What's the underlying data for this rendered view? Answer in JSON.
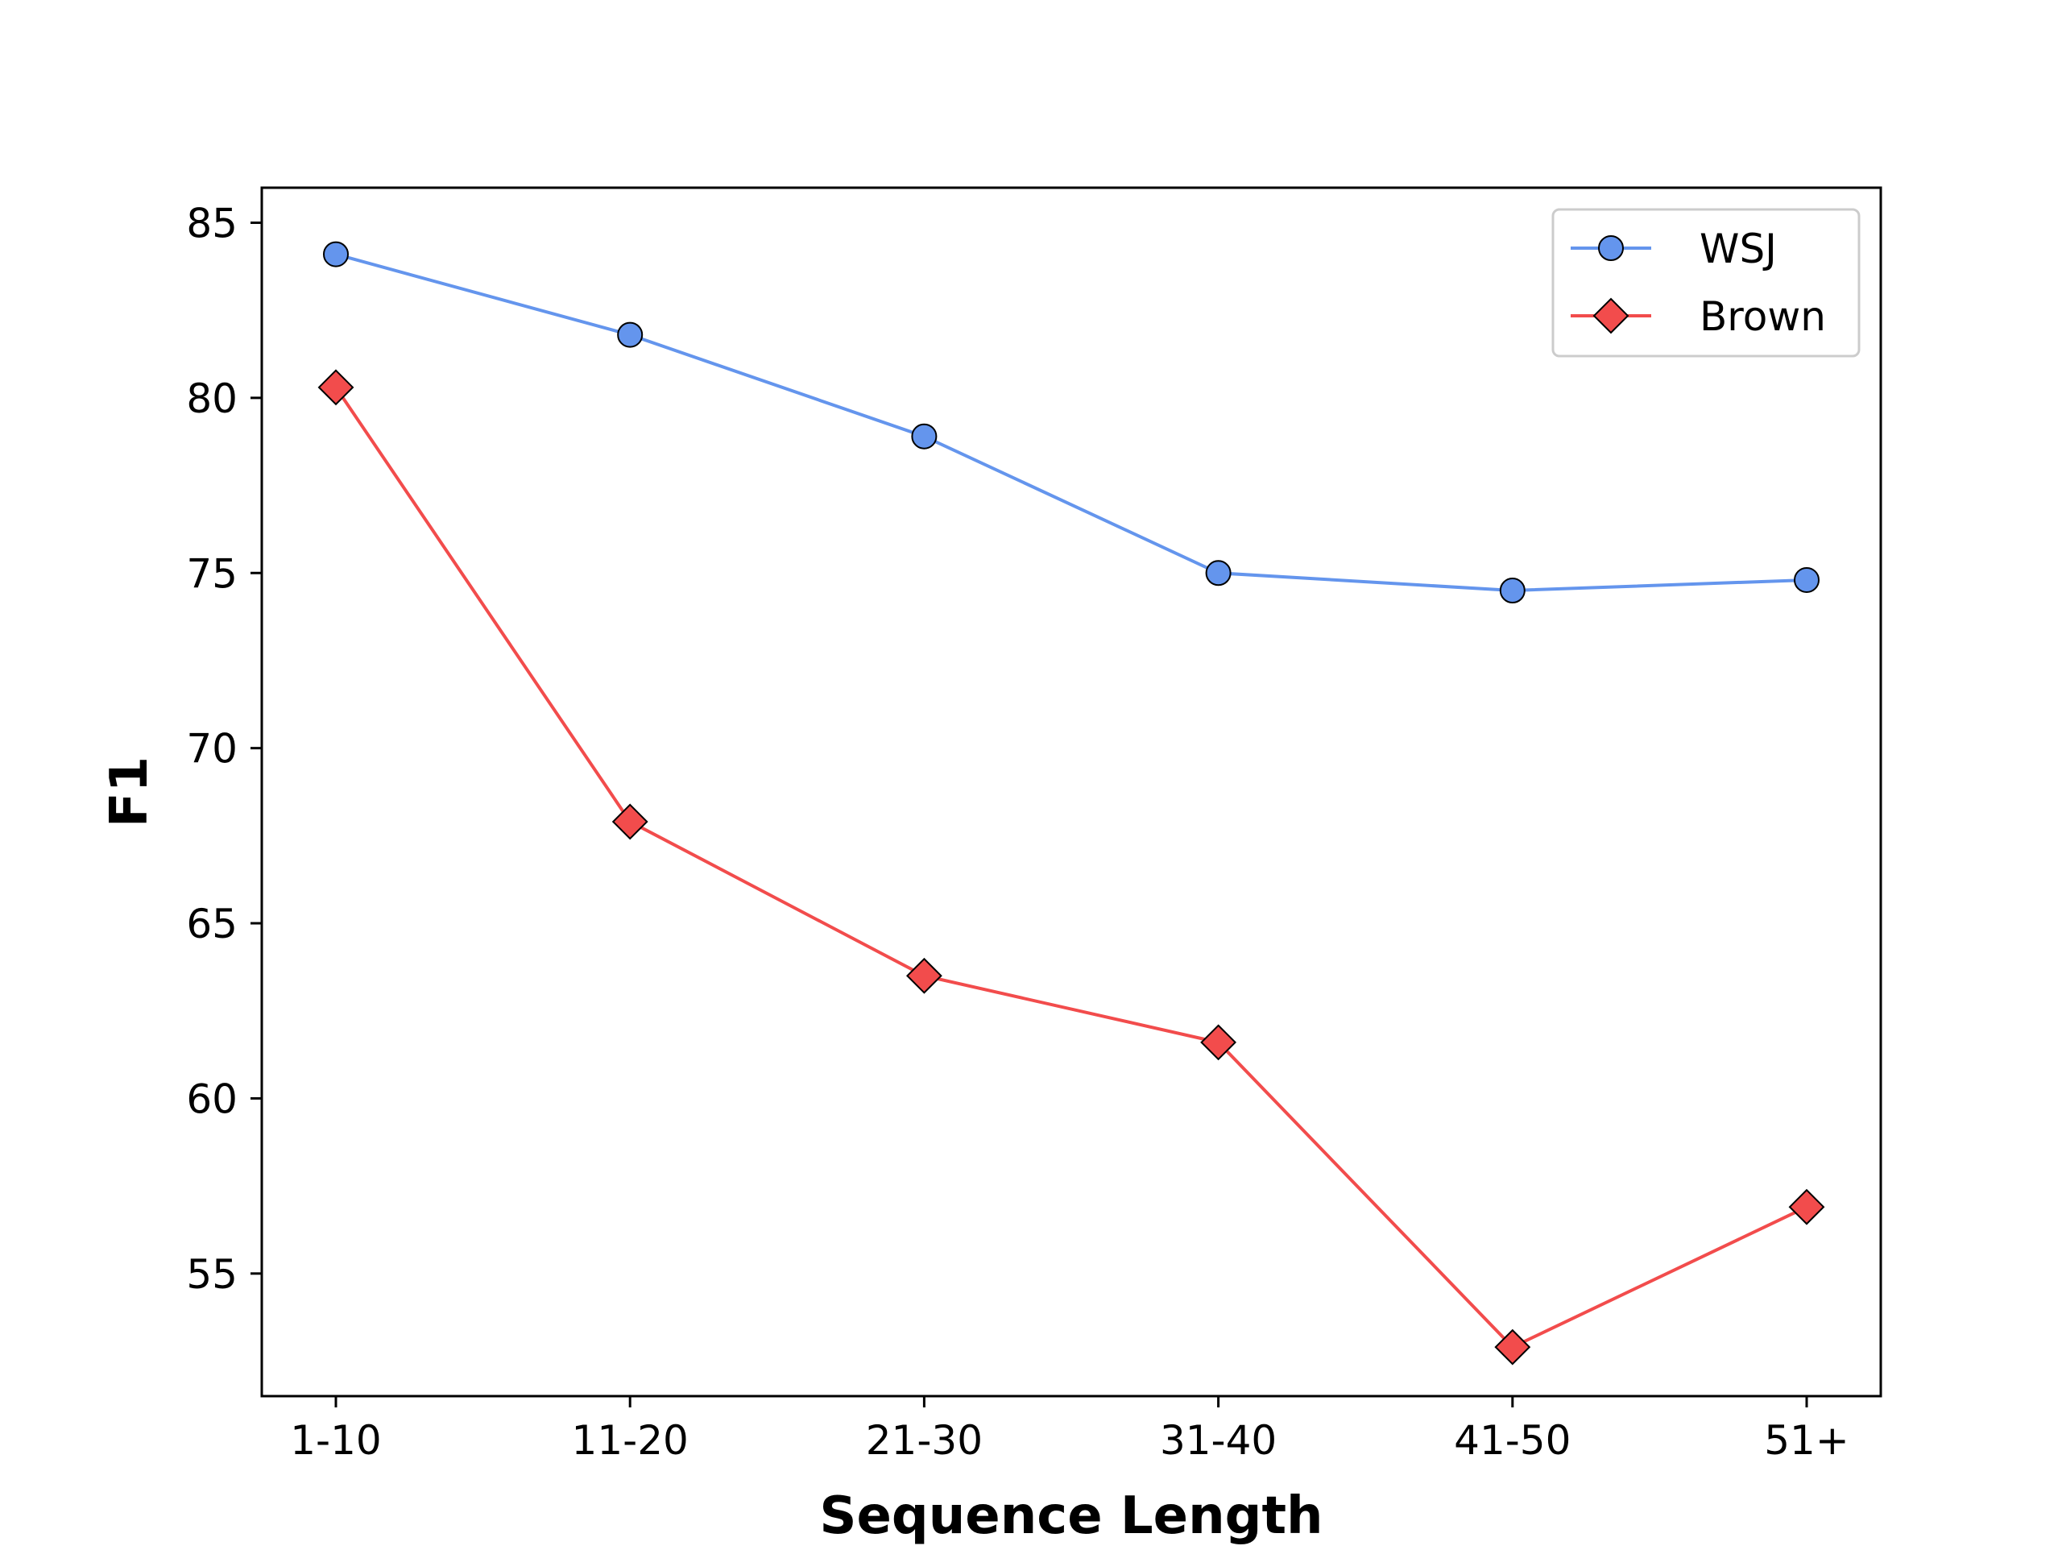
{
  "chart_data": {
    "type": "line",
    "title": "",
    "xlabel": "Sequence Length",
    "ylabel": "F1",
    "categories": [
      "1-10",
      "11-20",
      "21-30",
      "31-40",
      "41-50",
      "51+"
    ],
    "ylim": [
      51.5,
      86
    ],
    "yticks": [
      55,
      60,
      65,
      70,
      75,
      80,
      85
    ],
    "grid": false,
    "legend_position": "top-right",
    "series": [
      {
        "name": "WSJ",
        "values": [
          84.1,
          81.8,
          78.9,
          75.0,
          74.5,
          74.8
        ],
        "color": "#6495ED",
        "marker": "circle"
      },
      {
        "name": "Brown",
        "values": [
          80.3,
          67.9,
          63.5,
          61.6,
          52.9,
          56.9
        ],
        "color": "#F24C4C",
        "marker": "diamond"
      }
    ]
  }
}
